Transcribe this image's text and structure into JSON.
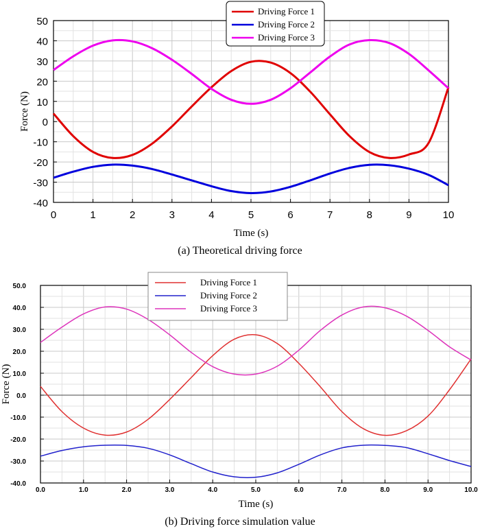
{
  "chart_data": [
    {
      "type": "line",
      "caption": "(a) Theoretical driving force",
      "xlabel": "Time (s)",
      "ylabel": "Force (N)",
      "xlim": [
        0,
        10
      ],
      "ylim": [
        -40,
        50
      ],
      "xticks": [
        "0",
        "1",
        "2",
        "3",
        "4",
        "5",
        "6",
        "7",
        "8",
        "9",
        "10"
      ],
      "yticks": [
        "50",
        "40",
        "30",
        "20",
        "10",
        "0",
        "-10",
        "-20",
        "-30",
        "-40"
      ],
      "grid": true,
      "legend_position": "top-center",
      "series": [
        {
          "name": "Driving Force 1",
          "color": "#e00000",
          "x": [
            0,
            0.5,
            1,
            1.5,
            2,
            2.5,
            3,
            3.5,
            4,
            4.5,
            5,
            5.5,
            6,
            6.5,
            7,
            7.5,
            8,
            8.5,
            9,
            9.5,
            10
          ],
          "y": [
            4,
            -7.2,
            -15,
            -18,
            -16.5,
            -10.9,
            -2.4,
            7.5,
            17,
            25,
            29.6,
            29.2,
            24,
            14.8,
            3.6,
            -7.3,
            -15.1,
            -18,
            -16.3,
            -10.5,
            17
          ]
        },
        {
          "name": "Driving Force 2",
          "color": "#0000dd",
          "x": [
            0,
            0.5,
            1,
            1.5,
            2,
            2.5,
            3,
            3.5,
            4,
            4.5,
            5,
            5.5,
            6,
            6.5,
            7,
            7.5,
            8,
            8.5,
            9,
            9.5,
            10
          ],
          "y": [
            -27.8,
            -24.8,
            -22.4,
            -21.3,
            -21.8,
            -23.5,
            -26.2,
            -29.1,
            -32,
            -34.4,
            -35.4,
            -34.6,
            -32.3,
            -29.1,
            -25.7,
            -22.9,
            -21.4,
            -21.6,
            -23.3,
            -26.4,
            -31.5
          ]
        },
        {
          "name": "Driving Force 3",
          "color": "#ee00ee",
          "x": [
            0,
            0.5,
            1,
            1.5,
            2,
            2.5,
            3,
            3.5,
            4,
            4.5,
            5,
            5.5,
            6,
            6.5,
            7,
            7.5,
            8,
            8.5,
            9,
            9.5,
            10
          ],
          "y": [
            25.5,
            32.3,
            37.6,
            40.2,
            39.7,
            36.3,
            30.6,
            23.6,
            16.2,
            10.8,
            8.8,
            10.8,
            16.5,
            24.3,
            32.2,
            38.2,
            40.3,
            38.9,
            33.5,
            25.3,
            16.5
          ]
        }
      ]
    },
    {
      "type": "line",
      "caption": "(b) Driving force simulation value",
      "xlabel": "Time (s)",
      "ylabel": "Force (N)",
      "xlim": [
        0,
        10
      ],
      "ylim": [
        -40,
        50
      ],
      "xticks": [
        "0.0",
        "1.0",
        "2.0",
        "3.0",
        "4.0",
        "5.0",
        "6.0",
        "7.0",
        "8.0",
        "9.0",
        "10.0"
      ],
      "yticks": [
        "50.0",
        "40.0",
        "30.0",
        "20.0",
        "10.0",
        "0.0",
        "-10.0",
        "-20.0",
        "-30.0",
        "-40.0"
      ],
      "grid": true,
      "legend_position": "top-left",
      "series": [
        {
          "name": "Driving Force 1",
          "color": "#e03030",
          "x": [
            0,
            0.5,
            1,
            1.5,
            2,
            2.5,
            3,
            3.5,
            4,
            4.5,
            5,
            5.5,
            6,
            6.5,
            7,
            7.5,
            8,
            8.5,
            9,
            9.5,
            10
          ],
          "y": [
            4,
            -7.5,
            -15,
            -18.2,
            -16.8,
            -11,
            -2,
            8,
            18,
            25.5,
            27.5,
            23.5,
            14.5,
            3.8,
            -7.5,
            -15.3,
            -18.3,
            -16.2,
            -9.5,
            2.5,
            16.5
          ]
        },
        {
          "name": "Driving Force 2",
          "color": "#2020cc",
          "x": [
            0,
            0.5,
            1,
            1.5,
            2,
            2.5,
            3,
            3.5,
            4,
            4.5,
            5,
            5.5,
            6,
            6.5,
            7,
            7.5,
            8,
            8.5,
            9,
            9.5,
            10
          ],
          "y": [
            -27.8,
            -25.2,
            -23.5,
            -22.8,
            -22.9,
            -24.2,
            -27.2,
            -31.2,
            -35,
            -37.2,
            -37.4,
            -35.4,
            -31.5,
            -27.2,
            -24,
            -22.8,
            -22.9,
            -23.9,
            -26.7,
            -29.8,
            -32.5
          ]
        },
        {
          "name": "Driving Force 3",
          "color": "#dd33bb",
          "x": [
            0,
            0.5,
            1,
            1.5,
            2,
            2.5,
            3,
            3.5,
            4,
            4.5,
            5,
            5.5,
            6,
            6.5,
            7,
            7.5,
            8,
            8.5,
            9,
            9.5,
            10
          ],
          "y": [
            24,
            31,
            37,
            40.2,
            39.2,
            34.5,
            27.5,
            19.5,
            13,
            9.6,
            9.6,
            13.2,
            20.5,
            29.5,
            36.5,
            40.2,
            39.8,
            36,
            29.5,
            22,
            16
          ]
        }
      ]
    }
  ]
}
